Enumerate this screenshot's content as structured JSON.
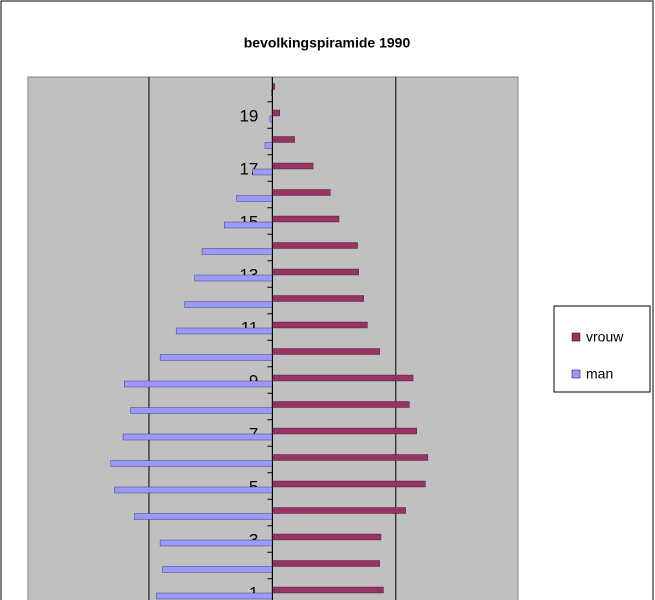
{
  "chart_data": {
    "type": "bar",
    "orientation": "horizontal",
    "title": "bevolkingspiramide 1990",
    "categories": [
      "1",
      null,
      "3",
      null,
      "5",
      null,
      "7",
      null,
      "9",
      null,
      "11",
      null,
      "13",
      null,
      "15",
      null,
      "17",
      null,
      "19",
      null
    ],
    "series": [
      {
        "name": "vrouw",
        "color": "#993366",
        "values": [
          0.9,
          0.87,
          0.88,
          1.08,
          1.24,
          1.26,
          1.17,
          1.11,
          1.14,
          0.87,
          0.77,
          0.74,
          0.7,
          0.69,
          0.54,
          0.47,
          0.33,
          0.18,
          0.06,
          0.02
        ]
      },
      {
        "name": "man",
        "color": "#9999ff",
        "values": [
          -0.94,
          -0.89,
          -0.91,
          -1.12,
          -1.28,
          -1.31,
          -1.21,
          -1.15,
          -1.2,
          -0.91,
          -0.78,
          -0.71,
          -0.63,
          -0.57,
          -0.39,
          -0.29,
          -0.16,
          -0.06,
          -0.02,
          -0.01
        ]
      }
    ],
    "xlim": [
      -1.98,
      1.99
    ],
    "xticks": [
      -1,
      0,
      1
    ],
    "grid": true,
    "legend": "right"
  }
}
